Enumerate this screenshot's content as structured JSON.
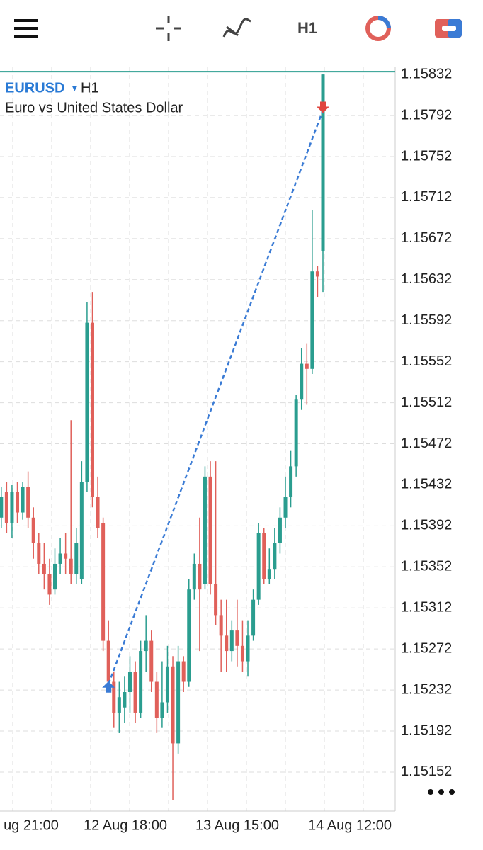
{
  "chart_data": {
    "type": "candlestick",
    "symbol": "EURUSD",
    "timeframe": "H1",
    "description": "Euro vs United States Dollar",
    "open": [
      1.154,
      1.15425,
      1.15395,
      1.15425,
      1.15405,
      1.1543,
      1.154,
      1.15375,
      1.15355,
      1.15345,
      1.1533,
      1.15355,
      1.15365,
      1.1536,
      1.15345,
      1.1534,
      1.15435,
      1.1559,
      1.1542,
      1.15395,
      1.1528,
      1.1524,
      1.1521,
      1.15215,
      1.1523,
      1.1525,
      1.1521,
      1.1527,
      1.1528,
      1.1524,
      1.15205,
      1.1522,
      1.15255,
      1.1518,
      1.1526,
      1.1524,
      1.1533,
      1.15355,
      1.15335,
      1.1544,
      1.15335,
      1.15305,
      1.15285,
      1.1527,
      1.1529,
      1.15275,
      1.1526,
      1.15285,
      1.1532,
      1.15385,
      1.1534,
      1.1535,
      1.15375,
      1.154,
      1.1542,
      1.1545,
      1.15515,
      1.1555,
      1.15545,
      1.1564,
      1.1566
    ],
    "high": [
      1.1543,
      1.15435,
      1.15432,
      1.15435,
      1.15435,
      1.15445,
      1.1541,
      1.15385,
      1.15375,
      1.1536,
      1.1537,
      1.1538,
      1.15385,
      1.15495,
      1.1539,
      1.15455,
      1.1561,
      1.1562,
      1.1544,
      1.154,
      1.153,
      1.1525,
      1.1524,
      1.15245,
      1.15265,
      1.1526,
      1.1528,
      1.15305,
      1.1529,
      1.1525,
      1.1526,
      1.15275,
      1.15265,
      1.15275,
      1.15265,
      1.1534,
      1.15365,
      1.154,
      1.1545,
      1.15455,
      1.15455,
      1.1532,
      1.1532,
      1.153,
      1.1532,
      1.153,
      1.153,
      1.1533,
      1.15395,
      1.1539,
      1.1537,
      1.1539,
      1.1541,
      1.1544,
      1.15465,
      1.1552,
      1.15565,
      1.1557,
      1.157,
      1.15645,
      1.15832
    ],
    "low": [
      1.1539,
      1.15385,
      1.1538,
      1.15395,
      1.15398,
      1.1539,
      1.1536,
      1.15345,
      1.1533,
      1.15315,
      1.15325,
      1.15345,
      1.15345,
      1.15335,
      1.15335,
      1.15335,
      1.15425,
      1.1541,
      1.1538,
      1.1527,
      1.1523,
      1.15195,
      1.1519,
      1.152,
      1.1521,
      1.152,
      1.15205,
      1.1525,
      1.1523,
      1.1519,
      1.15195,
      1.1521,
      1.15125,
      1.1517,
      1.1523,
      1.15235,
      1.1532,
      1.1527,
      1.1533,
      1.15325,
      1.15295,
      1.1525,
      1.1525,
      1.1526,
      1.15255,
      1.1525,
      1.15245,
      1.1528,
      1.15315,
      1.15335,
      1.15335,
      1.1534,
      1.15365,
      1.1539,
      1.1541,
      1.1544,
      1.15505,
      1.1551,
      1.1554,
      1.15615,
      1.1562
    ],
    "close": [
      1.1542,
      1.15395,
      1.15425,
      1.15405,
      1.1543,
      1.154,
      1.15375,
      1.15355,
      1.15345,
      1.15325,
      1.15355,
      1.15365,
      1.1536,
      1.15345,
      1.15375,
      1.15435,
      1.1559,
      1.1542,
      1.1539,
      1.1528,
      1.1524,
      1.1521,
      1.15225,
      1.1523,
      1.1525,
      1.1521,
      1.1527,
      1.1528,
      1.1524,
      1.15205,
      1.1522,
      1.15255,
      1.1518,
      1.1526,
      1.1524,
      1.1533,
      1.15355,
      1.1533,
      1.1544,
      1.15335,
      1.15305,
      1.15285,
      1.1527,
      1.1529,
      1.15275,
      1.1526,
      1.15285,
      1.1532,
      1.15385,
      1.1534,
      1.1535,
      1.15375,
      1.154,
      1.1542,
      1.1545,
      1.15515,
      1.1555,
      1.15545,
      1.1564,
      1.15635,
      1.15832
    ],
    "current_price": 1.15832,
    "ylim": [
      1.15114,
      1.15839
    ],
    "yticks": [
      1.15792,
      1.15752,
      1.15712,
      1.15672,
      1.15632,
      1.15592,
      1.15552,
      1.15512,
      1.15472,
      1.15432,
      1.15392,
      1.15352,
      1.15312,
      1.15272,
      1.15232,
      1.15192,
      1.15152
    ],
    "xtick_labels": [
      "ug 21:00",
      "12 Aug 18:00",
      "13 Aug 15:00",
      "14 Aug 12:00"
    ],
    "trades": {
      "buy": 1.15235,
      "sell": 1.158
    },
    "up_color": "#2a9d8f",
    "down_color": "#e0605a",
    "grid": true
  }
}
